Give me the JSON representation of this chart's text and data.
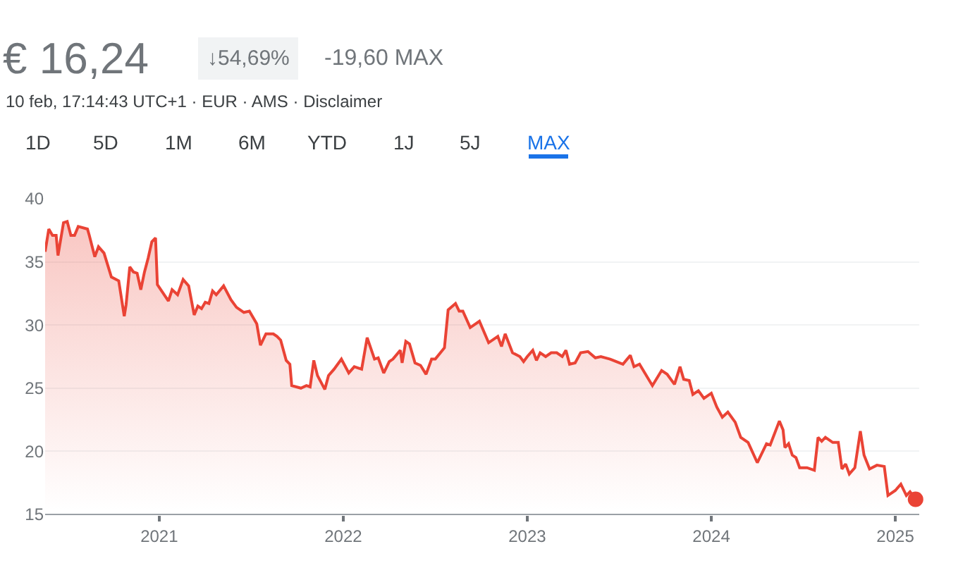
{
  "chart_data": {
    "type": "area",
    "title": "€ 16,24",
    "subtitle": "10 feb, 17:14:43 UTC+1 · EUR · AMS · Disclaimer",
    "annotations": [
      "↓54,69%",
      "-19,60 MAX",
      "1D",
      "5D",
      "1M",
      "6M",
      "YTD",
      "1J",
      "5J",
      "MAX"
    ],
    "series": [
      {
        "color": "#ea4335",
        "x": [
          2020.38,
          2020.4,
          2020.42,
          2020.44,
          2020.45,
          2020.48,
          2020.5,
          2020.52,
          2020.54,
          2020.56,
          2020.61,
          2020.62,
          2020.65,
          2020.67,
          2020.7,
          2020.74,
          2020.78,
          2020.81,
          2020.82,
          2020.84,
          2020.86,
          2020.88,
          2020.9,
          2020.92,
          2020.94,
          2020.96,
          2020.98,
          2020.99,
          2021.05,
          2021.07,
          2021.1,
          2021.13,
          2021.16,
          2021.19,
          2021.21,
          2021.23,
          2021.25,
          2021.27,
          2021.29,
          2021.31,
          2021.35,
          2021.39,
          2021.42,
          2021.46,
          2021.49,
          2021.53,
          2021.55,
          2021.58,
          2021.62,
          2021.64,
          2021.66,
          2021.69,
          2021.71,
          2021.72,
          2021.77,
          2021.8,
          2021.82,
          2021.84,
          2021.86,
          2021.9,
          2021.92,
          2021.95,
          2021.99,
          2022.03,
          2022.06,
          2022.1,
          2022.13,
          2022.17,
          2022.19,
          2022.22,
          2022.25,
          2022.27,
          2022.31,
          2022.32,
          2022.34,
          2022.36,
          2022.39,
          2022.42,
          2022.45,
          2022.48,
          2022.5,
          2022.55,
          2022.57,
          2022.61,
          2022.63,
          2022.65,
          2022.69,
          2022.74,
          2022.79,
          2022.84,
          2022.86,
          2022.88,
          2022.92,
          2022.96,
          2022.98,
          2023.0,
          2023.03,
          2023.05,
          2023.07,
          2023.1,
          2023.13,
          2023.16,
          2023.19,
          2023.21,
          2023.23,
          2023.26,
          2023.29,
          2023.33,
          2023.37,
          2023.4,
          2023.45,
          2023.52,
          2023.56,
          2023.58,
          2023.61,
          2023.68,
          2023.73,
          2023.76,
          2023.8,
          2023.83,
          2023.85,
          2023.88,
          2023.9,
          2023.93,
          2023.96,
          2024.0,
          2024.03,
          2024.06,
          2024.09,
          2024.13,
          2024.16,
          2024.2,
          2024.25,
          2024.3,
          2024.32,
          2024.37,
          2024.39,
          2024.4,
          2024.42,
          2024.44,
          2024.46,
          2024.48,
          2024.52,
          2024.56,
          2024.58,
          2024.6,
          2024.62,
          2024.66,
          2024.69,
          2024.71,
          2024.73,
          2024.75,
          2024.78,
          2024.81,
          2024.83,
          2024.86,
          2024.9,
          2024.94,
          2024.96,
          2025.0,
          2025.03,
          2025.06,
          2025.08,
          2025.11
        ],
        "values": [
          35.8,
          37.6,
          37.1,
          37.1,
          35.5,
          38.1,
          38.2,
          37.1,
          37.1,
          37.8,
          37.6,
          37.1,
          35.4,
          36.2,
          35.7,
          33.8,
          33.5,
          30.7,
          31.6,
          34.6,
          34.2,
          34.1,
          32.8,
          34.2,
          35.3,
          36.6,
          36.9,
          33.2,
          31.9,
          32.8,
          32.4,
          33.6,
          33.1,
          30.8,
          31.5,
          31.3,
          31.8,
          31.7,
          32.7,
          32.4,
          33.1,
          32.0,
          31.4,
          31.0,
          31.1,
          30.1,
          28.4,
          29.3,
          29.3,
          29.1,
          28.8,
          27.2,
          26.9,
          25.2,
          25.0,
          25.2,
          25.1,
          27.2,
          26.0,
          24.9,
          26.0,
          26.5,
          27.3,
          26.2,
          26.7,
          26.5,
          29.0,
          27.3,
          27.4,
          26.2,
          27.1,
          27.3,
          28.0,
          27.0,
          28.7,
          28.5,
          27.0,
          26.8,
          26.1,
          27.3,
          27.3,
          28.2,
          31.2,
          31.7,
          31.1,
          31.1,
          29.8,
          30.3,
          28.6,
          29.1,
          28.3,
          29.3,
          27.8,
          27.5,
          27.1,
          27.5,
          28.0,
          27.2,
          27.8,
          27.5,
          27.8,
          27.8,
          27.5,
          28.0,
          26.9,
          27.0,
          27.8,
          27.9,
          27.4,
          27.5,
          27.3,
          26.9,
          27.6,
          26.7,
          26.9,
          25.2,
          26.4,
          26.1,
          25.3,
          26.7,
          25.7,
          25.6,
          24.5,
          24.8,
          24.2,
          24.6,
          23.5,
          22.7,
          23.1,
          22.3,
          21.1,
          20.7,
          19.1,
          20.6,
          20.5,
          22.4,
          21.7,
          20.3,
          20.6,
          19.7,
          19.5,
          18.7,
          18.7,
          18.5,
          21.1,
          20.8,
          21.1,
          20.7,
          20.7,
          18.6,
          19.0,
          18.2,
          18.7,
          21.6,
          19.7,
          18.6,
          18.9,
          18.8,
          16.5,
          16.9,
          17.4,
          16.5,
          16.8,
          16.2
        ]
      },
      {
        "type": "scatter",
        "color": "#ea4335",
        "marker": "circle",
        "x": [
          2025.11
        ],
        "values": [
          16.2
        ]
      }
    ],
    "xlim": [
      2020.38,
      2025.13
    ],
    "xticks": [
      2021,
      2022,
      2023,
      2024,
      2025
    ],
    "ylim": [
      15,
      40
    ],
    "yticks": [
      15,
      20,
      25,
      30,
      35,
      40
    ],
    "grid": "y"
  }
}
